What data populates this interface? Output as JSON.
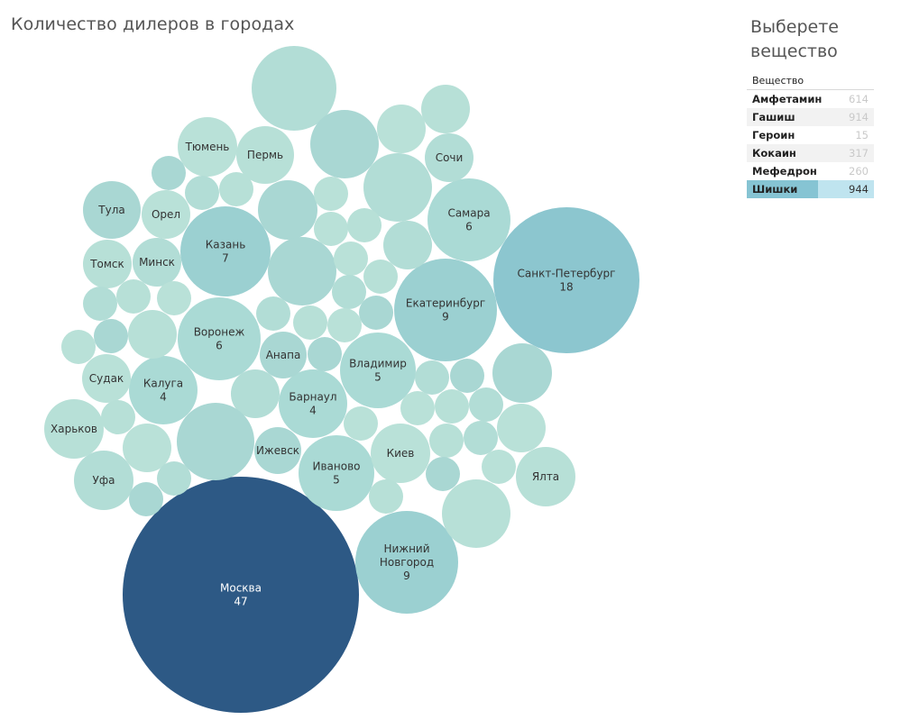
{
  "title": "Количество дилеров в городах",
  "filter": {
    "title": "Выберете вещество",
    "header": "Вещество",
    "items": [
      {
        "label": "Амфетамин",
        "count": "614",
        "selected": false
      },
      {
        "label": "Гашиш",
        "count": "914",
        "selected": false
      },
      {
        "label": "Героин",
        "count": "15",
        "selected": false
      },
      {
        "label": "Кокаин",
        "count": "317",
        "selected": false
      },
      {
        "label": "Мефедрон",
        "count": "260",
        "selected": false
      },
      {
        "label": "Шишки",
        "count": "944",
        "selected": true
      }
    ]
  },
  "colors": {
    "low": "#b7e0d7",
    "mid": "#8cc6cf",
    "high": "#2d5985"
  },
  "chart_data": {
    "type": "bubble",
    "title": "Количество дилеров в городах",
    "labeled": [
      {
        "city": "Москва",
        "value": 47
      },
      {
        "city": "Санкт-Петербург",
        "value": 18
      },
      {
        "city": "Нижний Новгород",
        "value": 9
      },
      {
        "city": "Екатеринбург",
        "value": 9
      },
      {
        "city": "Казань",
        "value": 7
      },
      {
        "city": "Самара",
        "value": 6
      },
      {
        "city": "Воронеж",
        "value": 6
      },
      {
        "city": "Владимир",
        "value": 5
      },
      {
        "city": "Иваново",
        "value": 5
      },
      {
        "city": "Калуга",
        "value": 4
      },
      {
        "city": "Барнаул",
        "value": 4
      },
      {
        "city": "Тюмень",
        "value": null
      },
      {
        "city": "Пермь",
        "value": null
      },
      {
        "city": "Сочи",
        "value": null
      },
      {
        "city": "Тула",
        "value": null
      },
      {
        "city": "Орел",
        "value": null
      },
      {
        "city": "Томск",
        "value": null
      },
      {
        "city": "Минск",
        "value": null
      },
      {
        "city": "Анапа",
        "value": null
      },
      {
        "city": "Судак",
        "value": null
      },
      {
        "city": "Харьков",
        "value": null
      },
      {
        "city": "Уфа",
        "value": null
      },
      {
        "city": "Ижевск",
        "value": null
      },
      {
        "city": "Киев",
        "value": null
      },
      {
        "city": "Ялта",
        "value": null
      }
    ]
  }
}
